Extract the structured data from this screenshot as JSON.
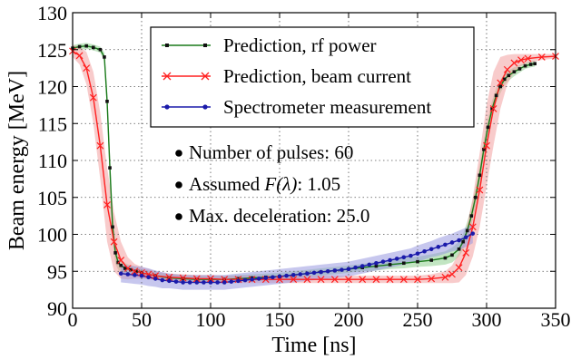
{
  "chart_data": {
    "type": "line",
    "xlabel": "Time [ns]",
    "ylabel": "Beam energy [MeV]",
    "xlim": [
      0,
      350
    ],
    "ylim": [
      90,
      130
    ],
    "xticks": [
      0,
      50,
      100,
      150,
      200,
      250,
      300,
      350
    ],
    "yticks": [
      90,
      95,
      100,
      105,
      110,
      115,
      120,
      125,
      130
    ],
    "grid": true,
    "legend_position": "top-right",
    "series": [
      {
        "name": "Prediction, rf power",
        "color": "#1a7a1a",
        "band_color": "#8fcf8f",
        "marker": "square",
        "x": [
          0,
          5,
          10,
          15,
          20,
          23,
          25,
          27,
          29,
          31,
          33,
          35,
          38,
          42,
          46,
          50,
          60,
          70,
          80,
          90,
          100,
          110,
          120,
          130,
          140,
          150,
          160,
          170,
          180,
          190,
          200,
          210,
          220,
          230,
          240,
          250,
          260,
          270,
          275,
          280,
          283,
          286,
          289,
          292,
          295,
          298,
          301,
          304,
          307,
          310,
          313,
          316,
          320,
          324,
          328,
          332,
          335
        ],
        "y": [
          125.2,
          125.4,
          125.5,
          125.3,
          125.0,
          124.0,
          118.0,
          109.0,
          101.0,
          97.5,
          96.2,
          95.8,
          95.4,
          95.2,
          95.0,
          94.8,
          94.4,
          94.1,
          94.0,
          93.9,
          93.9,
          93.9,
          94.0,
          94.1,
          94.2,
          94.3,
          94.5,
          94.7,
          94.9,
          95.1,
          95.3,
          95.5,
          95.7,
          95.9,
          96.1,
          96.3,
          96.5,
          96.8,
          97.2,
          98.0,
          99.0,
          100.5,
          102.5,
          105.0,
          108.0,
          111.5,
          114.5,
          117.0,
          118.8,
          120.0,
          121.0,
          121.5,
          122.0,
          122.4,
          122.8,
          123.0,
          123.1
        ],
        "band": [
          0.4,
          0.4,
          0.4,
          0.4,
          0.4,
          0.6,
          1.5,
          2.0,
          2.0,
          1.5,
          1.0,
          0.8,
          0.7,
          0.6,
          0.6,
          0.5,
          0.5,
          0.5,
          0.5,
          0.5,
          0.5,
          0.5,
          0.5,
          0.5,
          0.5,
          0.5,
          0.5,
          0.5,
          0.5,
          0.5,
          0.5,
          0.5,
          0.6,
          0.6,
          0.7,
          0.7,
          0.8,
          0.9,
          1.0,
          1.0,
          1.1,
          1.2,
          1.3,
          1.3,
          1.3,
          1.3,
          1.2,
          1.1,
          1.0,
          0.9,
          0.8,
          0.7,
          0.6,
          0.5,
          0.4,
          0.4,
          0.4
        ]
      },
      {
        "name": "Prediction, beam current",
        "color": "#ff2020",
        "band_color": "#f2a0a0",
        "marker": "x",
        "x": [
          0,
          5,
          10,
          15,
          20,
          25,
          30,
          35,
          40,
          45,
          50,
          55,
          60,
          70,
          80,
          90,
          100,
          110,
          120,
          130,
          140,
          150,
          160,
          170,
          180,
          190,
          200,
          210,
          220,
          230,
          240,
          250,
          260,
          270,
          275,
          280,
          285,
          290,
          295,
          300,
          305,
          310,
          315,
          320,
          325,
          330,
          340,
          350
        ],
        "y": [
          124.8,
          124.2,
          122.5,
          118.5,
          112.0,
          104.0,
          99.0,
          96.5,
          95.4,
          95.0,
          94.8,
          94.6,
          94.4,
          94.2,
          94.1,
          94.0,
          94.0,
          93.9,
          93.9,
          93.9,
          93.9,
          93.9,
          93.9,
          93.9,
          93.9,
          93.9,
          93.9,
          93.9,
          93.9,
          93.9,
          93.9,
          93.9,
          94.0,
          94.2,
          94.6,
          95.5,
          97.5,
          101.0,
          106.0,
          112.0,
          117.0,
          120.5,
          122.3,
          123.2,
          123.6,
          123.8,
          124.0,
          124.1
        ],
        "band": [
          0.8,
          1.2,
          2.2,
          3.5,
          4.5,
          5.0,
          4.0,
          2.5,
          1.5,
          1.0,
          0.8,
          0.7,
          0.6,
          0.5,
          0.5,
          0.5,
          0.5,
          0.5,
          0.5,
          0.5,
          0.5,
          0.5,
          0.5,
          0.5,
          0.5,
          0.5,
          0.5,
          0.5,
          0.5,
          0.5,
          0.5,
          0.5,
          0.6,
          0.8,
          1.2,
          2.0,
          3.0,
          4.0,
          5.0,
          5.5,
          5.0,
          3.5,
          2.0,
          1.2,
          0.8,
          0.6,
          0.4,
          0.3
        ]
      },
      {
        "name": "Spectrometer measurement",
        "color": "#1a1aaa",
        "band_color": "#9999e0",
        "marker": "dot",
        "x": [
          35,
          40,
          45,
          50,
          55,
          60,
          65,
          70,
          75,
          80,
          85,
          90,
          95,
          100,
          105,
          110,
          115,
          120,
          125,
          130,
          135,
          140,
          145,
          150,
          155,
          160,
          165,
          170,
          175,
          180,
          185,
          190,
          195,
          200,
          205,
          210,
          215,
          220,
          225,
          230,
          235,
          240,
          245,
          250,
          255,
          260,
          265,
          270,
          275,
          280,
          285,
          290
        ],
        "y": [
          94.7,
          94.6,
          94.5,
          94.4,
          94.2,
          94.0,
          93.8,
          93.7,
          93.6,
          93.5,
          93.5,
          93.5,
          93.5,
          93.5,
          93.5,
          93.5,
          93.6,
          93.7,
          93.8,
          93.9,
          94.0,
          94.1,
          94.2,
          94.3,
          94.4,
          94.5,
          94.6,
          94.7,
          94.8,
          94.9,
          95.0,
          95.1,
          95.2,
          95.3,
          95.5,
          95.7,
          95.9,
          96.1,
          96.3,
          96.5,
          96.7,
          96.9,
          97.1,
          97.4,
          97.7,
          98.0,
          98.3,
          98.6,
          98.9,
          99.2,
          99.6,
          100.1
        ],
        "band": [
          1.2,
          1.2,
          1.2,
          1.2,
          1.2,
          1.1,
          1.1,
          1.0,
          1.0,
          1.0,
          1.0,
          1.0,
          1.0,
          1.0,
          1.0,
          1.0,
          1.0,
          1.0,
          1.0,
          1.0,
          1.0,
          1.0,
          1.0,
          1.0,
          1.0,
          1.0,
          1.0,
          1.0,
          1.0,
          1.0,
          1.0,
          1.0,
          1.0,
          1.0,
          1.0,
          1.0,
          1.0,
          1.0,
          1.0,
          1.0,
          1.0,
          1.0,
          1.0,
          1.1,
          1.1,
          1.1,
          1.2,
          1.2,
          1.2,
          1.3,
          1.3,
          1.3
        ]
      }
    ],
    "annotations": [
      {
        "text": "Number of pulses: 60"
      },
      {
        "text": "Assumed ",
        "math": "F(λ)",
        "suffix": ": 1.05"
      },
      {
        "text": "Max. deceleration: 25.0"
      }
    ]
  }
}
